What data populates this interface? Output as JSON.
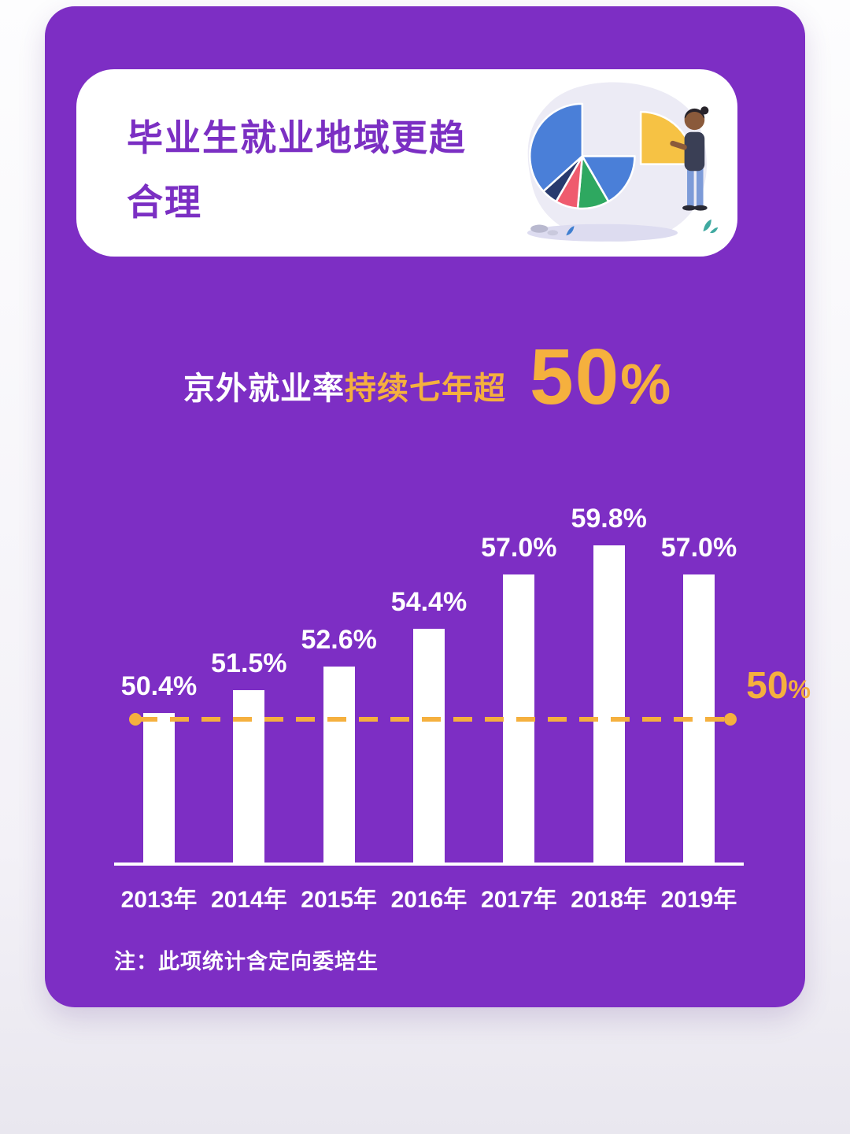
{
  "page": {
    "header": {
      "title_line1": "毕业生就业地域更趋",
      "title_line2": "合理"
    },
    "subtitle": {
      "text_white": "京外就业率",
      "text_yellow": "持续七年超",
      "big_number": "50",
      "big_suffix": "%"
    },
    "note": "注：此项统计含定向委培生"
  },
  "chart_data": {
    "type": "bar",
    "title": "京外就业率持续七年超50%",
    "categories": [
      "2013年",
      "2014年",
      "2015年",
      "2016年",
      "2017年",
      "2018年",
      "2019年"
    ],
    "values": [
      50.4,
      51.5,
      52.6,
      54.4,
      57.0,
      59.8,
      57.0
    ],
    "value_labels": [
      "50.4%",
      "51.5%",
      "52.6%",
      "54.4%",
      "57.0%",
      "59.8%",
      "57.0%"
    ],
    "xlabel": "",
    "ylabel": "",
    "ylim": [
      43.3,
      60.5
    ],
    "grid": false,
    "legend": false,
    "bar_color": "#ffffff",
    "reference_line": {
      "value": 50,
      "label_number": "50",
      "label_suffix": "%",
      "color": "#F5B03E"
    }
  },
  "colors": {
    "card_bg": "#7D2EC4",
    "accent_yellow": "#F5B03E",
    "bar": "#ffffff",
    "title_purple": "#7B2FC3"
  }
}
